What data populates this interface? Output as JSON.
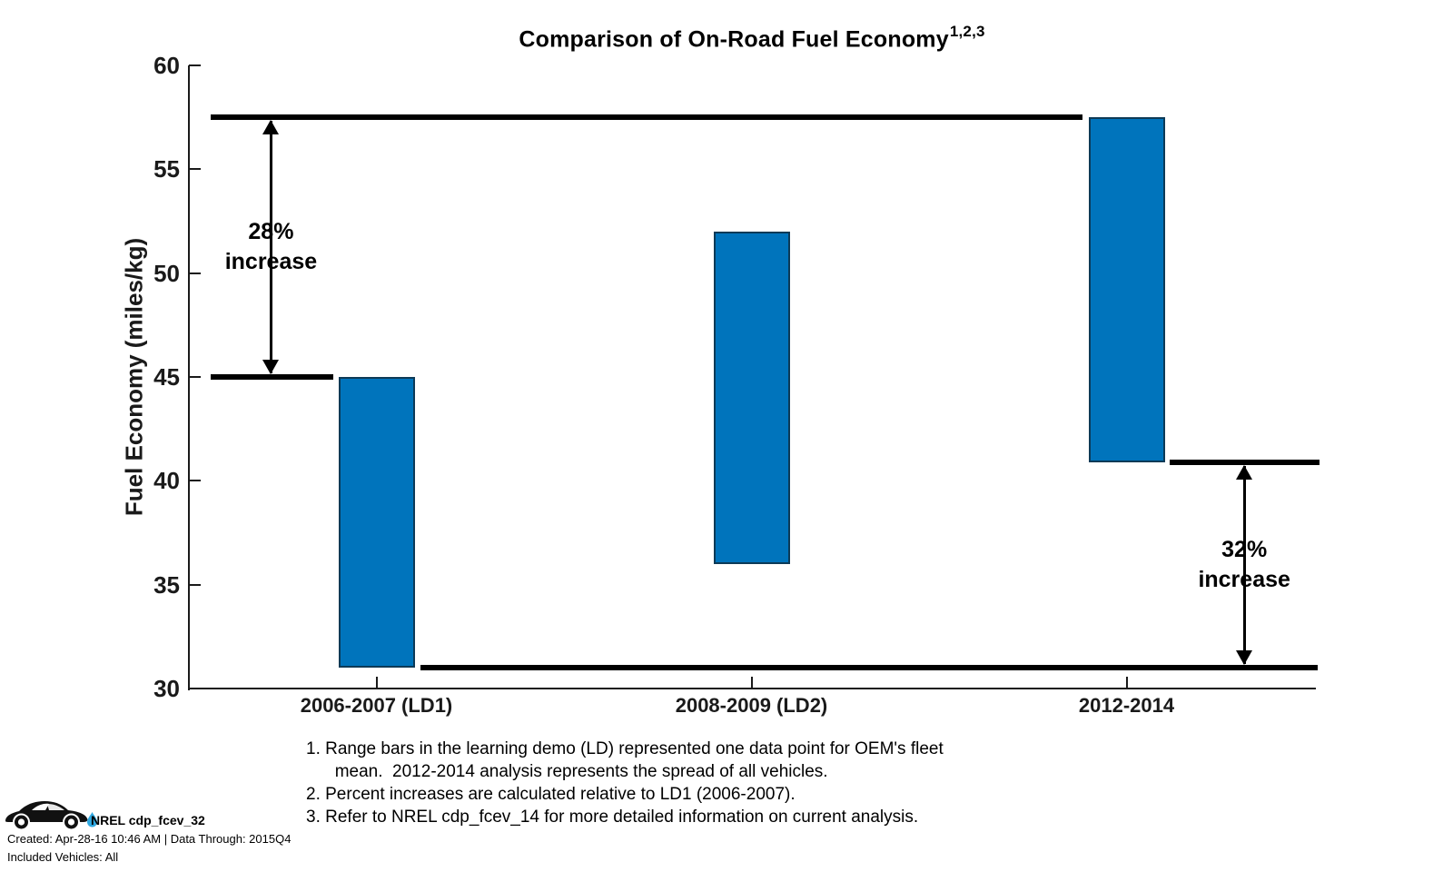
{
  "chart_data": {
    "type": "bar",
    "subtype": "floating_range_bars",
    "title": "Comparison of On-Road Fuel Economy",
    "title_superscript": "1,2,3",
    "ylabel": "Fuel Economy (miles/kg)",
    "xlabel": "",
    "ylim": [
      30,
      60
    ],
    "yticks": [
      30,
      35,
      40,
      45,
      50,
      55,
      60
    ],
    "categories": [
      "2006-2007 (LD1)",
      "2008-2009 (LD2)",
      "2012-2014"
    ],
    "series": [
      {
        "name": "On-road fuel economy range",
        "ranges": [
          [
            31,
            45
          ],
          [
            36,
            52
          ],
          [
            40.9,
            57.5
          ]
        ]
      }
    ],
    "grid": false,
    "legend_position": "none",
    "bar_color": "#0074BC",
    "bar_edge_color": "#0D3A57",
    "axis_color": "#1a1a1a",
    "annotation_line_color": "#000000",
    "reference_lines": [
      {
        "value": 57.5,
        "x1f": 0.019,
        "x2f": 0.794
      },
      {
        "value": 45,
        "x1f": 0.019,
        "x2f": 0.128
      },
      {
        "value": 40.9,
        "x1f": 0.872,
        "x2f": 1.005
      },
      {
        "value": 31,
        "x1f": 0.206,
        "x2f": 1.003
      }
    ],
    "annotations": [
      {
        "line1": "28%",
        "line2": "increase",
        "from_value": 45,
        "to_value": 57.5,
        "xf": 0.073
      },
      {
        "line1": "32%",
        "line2": "increase",
        "from_value": 31,
        "to_value": 40.9,
        "xf": 0.938
      }
    ]
  },
  "footnotes": [
    "1. Range bars in the learning demo (LD) represented one data point for OEM's fleet\n      mean.  2012-2014 analysis represents the spread of all vehicles.",
    "2. Percent increases are calculated relative to LD1 (2006-2007).",
    "3. Refer to NREL cdp_fcev_14 for more detailed information on current analysis."
  ],
  "stamp": {
    "id": "NREL cdp_fcev_32",
    "created": "Created: Apr-28-16 10:46 AM | Data Through: 2015Q4",
    "vehicles": "Included Vehicles: All",
    "car_color": "#111111",
    "drop_color": "#2FA8E1"
  }
}
